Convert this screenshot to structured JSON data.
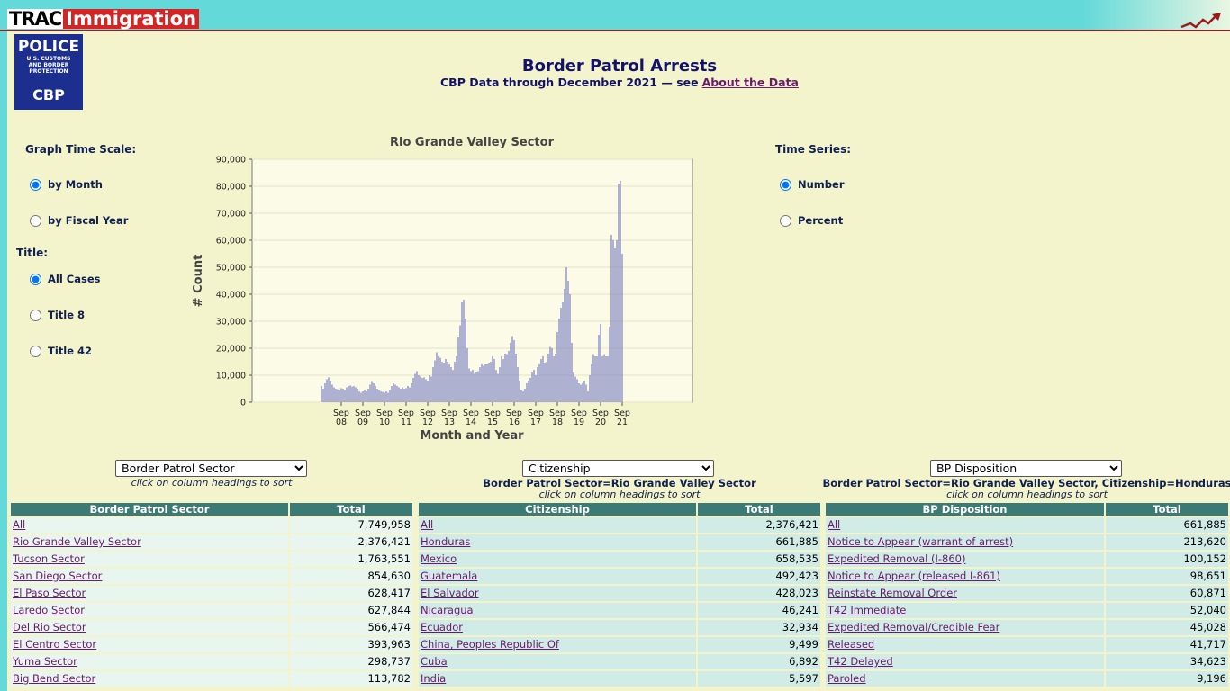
{
  "header": {
    "logo_left": "TRAC",
    "logo_right": "Immigration",
    "badge": {
      "line1": "POLICE",
      "line2": "U.S. CUSTOMS AND BORDER PROTECTION",
      "line3": "CBP"
    },
    "title": "Border Patrol Arrests",
    "subtitle": "CBP Data through December 2021 — see",
    "subtitle_link": "About the Data"
  },
  "controls": {
    "time_scale": {
      "label": "Graph Time Scale:",
      "options": [
        "by Month",
        "by Fiscal Year"
      ]
    },
    "title_filter": {
      "label": "Title:",
      "options": [
        "All Cases",
        "Title 8",
        "Title 42"
      ]
    },
    "time_series": {
      "label": "Time Series:",
      "options": [
        "Number",
        "Percent"
      ]
    }
  },
  "chart_data": {
    "type": "bar",
    "title": "Rio Grande Valley Sector",
    "x_label": "Month and Year",
    "y_label": "# Count",
    "color": "#7d80c0",
    "grid": true,
    "ylim": [
      0,
      90000
    ],
    "yticks": [
      0,
      {
        "value": 10000,
        "label": "10,000"
      },
      {
        "value": 20000,
        "label": "20,000"
      },
      {
        "value": 30000,
        "label": "30,000"
      },
      {
        "value": 40000,
        "label": "40,000"
      },
      {
        "value": 50000,
        "label": "50,000"
      },
      {
        "value": 60000,
        "label": "60,000"
      },
      {
        "value": 70000,
        "label": "70,000"
      },
      {
        "value": 80000,
        "label": "80,000"
      },
      {
        "value": 90000,
        "label": "90,000"
      }
    ],
    "categories": [
      null,
      null,
      null,
      null,
      null,
      null,
      null,
      null,
      null,
      null,
      null,
      "Sep 08",
      null,
      null,
      null,
      null,
      null,
      null,
      null,
      null,
      null,
      null,
      null,
      "Sep 09",
      null,
      null,
      null,
      null,
      null,
      null,
      null,
      null,
      null,
      null,
      null,
      "Sep 10",
      null,
      null,
      null,
      null,
      null,
      null,
      null,
      null,
      null,
      null,
      null,
      "Sep 11",
      null,
      null,
      null,
      null,
      null,
      null,
      null,
      null,
      null,
      null,
      null,
      "Sep 12",
      null,
      null,
      null,
      null,
      null,
      null,
      null,
      null,
      null,
      null,
      null,
      "Sep 13",
      null,
      null,
      null,
      null,
      null,
      null,
      null,
      null,
      null,
      null,
      null,
      "Sep 14",
      null,
      null,
      null,
      null,
      null,
      null,
      null,
      null,
      null,
      null,
      null,
      "Sep 15",
      null,
      null,
      null,
      null,
      null,
      null,
      null,
      null,
      null,
      null,
      null,
      "Sep 16",
      null,
      null,
      null,
      null,
      null,
      null,
      null,
      null,
      null,
      null,
      null,
      "Sep 17",
      null,
      null,
      null,
      null,
      null,
      null,
      null,
      null,
      null,
      null,
      null,
      "Sep 18",
      null,
      null,
      null,
      null,
      null,
      null,
      null,
      null,
      null,
      null,
      null,
      "Sep 19",
      null,
      null,
      null,
      null,
      null,
      null,
      null,
      null,
      null,
      null,
      null,
      "Sep 20",
      null,
      null,
      null,
      null,
      null,
      null,
      null,
      null,
      null,
      null,
      null,
      "Sep 21"
    ],
    "values": [
      6000,
      5000,
      7000,
      8500,
      9200,
      8000,
      6500,
      5500,
      5000,
      4800,
      4500,
      5200,
      5000,
      4500,
      5500,
      6000,
      6200,
      5800,
      6000,
      5500,
      5000,
      4000,
      3500,
      4000,
      4500,
      4000,
      5000,
      6500,
      7500,
      7000,
      6000,
      5000,
      4500,
      4000,
      3800,
      3500,
      4000,
      3500,
      4500,
      6000,
      7000,
      6500,
      6000,
      5500,
      5000,
      5500,
      5000,
      5200,
      6000,
      5500,
      7000,
      9000,
      10500,
      11500,
      10000,
      9500,
      9000,
      9200,
      8500,
      8000,
      10000,
      9500,
      13000,
      15500,
      18500,
      17000,
      16500,
      15000,
      14500,
      16000,
      15000,
      14000,
      13000,
      12000,
      15000,
      17000,
      24000,
      28500,
      37000,
      38000,
      31000,
      20000,
      12500,
      11500,
      12000,
      10500,
      11000,
      11500,
      13000,
      14000,
      13500,
      14000,
      14000,
      14500,
      15000,
      17000,
      16000,
      12000,
      10500,
      13000,
      17000,
      16000,
      18000,
      17500,
      19000,
      22000,
      24500,
      23000,
      18000,
      13000,
      8000,
      4500,
      4000,
      5000,
      7000,
      8000,
      9000,
      11000,
      12000,
      10000,
      13000,
      14000,
      16000,
      17000,
      14500,
      15000,
      18000,
      20500,
      20000,
      17000,
      18000,
      26000,
      31000,
      35000,
      37000,
      42000,
      50000,
      45000,
      40000,
      22000,
      11000,
      9500,
      8500,
      7000,
      6500,
      7000,
      8000,
      6500,
      4000,
      10000,
      14000,
      17500,
      17000,
      17000,
      25000,
      29000,
      17000,
      17500,
      17000,
      17000,
      28000,
      62000,
      60000,
      57000,
      60000,
      81000,
      82000,
      55000
    ]
  },
  "tables": [
    {
      "select": "Border Patrol Sector",
      "sort_hint": "click on column headings to sort",
      "headers": [
        "Border Patrol Sector",
        "Total"
      ],
      "rows": [
        [
          "All",
          "7,749,958"
        ],
        [
          "Rio Grande Valley Sector",
          "2,376,421"
        ],
        [
          "Tucson Sector",
          "1,763,551"
        ],
        [
          "San Diego Sector",
          "854,630"
        ],
        [
          "El Paso Sector",
          "628,417"
        ],
        [
          "Laredo Sector",
          "627,844"
        ],
        [
          "Del Rio Sector",
          "566,474"
        ],
        [
          "El Centro Sector",
          "393,963"
        ],
        [
          "Yuma Sector",
          "298,737"
        ],
        [
          "Big Bend Sector",
          "113,782"
        ]
      ]
    },
    {
      "select": "Citizenship",
      "filter": "Border Patrol Sector=Rio Grande Valley Sector",
      "sort_hint": "click on column headings to sort",
      "headers": [
        "Citizenship",
        "Total"
      ],
      "rows": [
        [
          "All",
          "2,376,421"
        ],
        [
          "Honduras",
          "661,885"
        ],
        [
          "Mexico",
          "658,535"
        ],
        [
          "Guatemala",
          "492,423"
        ],
        [
          "El Salvador",
          "428,023"
        ],
        [
          "Nicaragua",
          "46,241"
        ],
        [
          "Ecuador",
          "32,934"
        ],
        [
          "China, Peoples Republic Of",
          "9,499"
        ],
        [
          "Cuba",
          "6,892"
        ],
        [
          "India",
          "5,597"
        ]
      ]
    },
    {
      "select": "BP Disposition",
      "filter": "Border Patrol Sector=Rio Grande Valley Sector, Citizenship=Honduras",
      "sort_hint": "click on column headings to sort",
      "headers": [
        "BP Disposition",
        "Total"
      ],
      "rows": [
        [
          "All",
          "661,885"
        ],
        [
          "Notice to Appear (warrant of arrest)",
          "213,620"
        ],
        [
          "Expedited Removal (I-860)",
          "100,152"
        ],
        [
          "Notice to Appear (released I-861)",
          "98,651"
        ],
        [
          "Reinstate Removal Order",
          "60,871"
        ],
        [
          "T42 Immediate",
          "52,040"
        ],
        [
          "Expedited Removal/Credible Fear",
          "45,028"
        ],
        [
          "Released",
          "41,717"
        ],
        [
          "T42 Delayed",
          "34,623"
        ],
        [
          "Paroled",
          "9,196"
        ]
      ]
    }
  ]
}
